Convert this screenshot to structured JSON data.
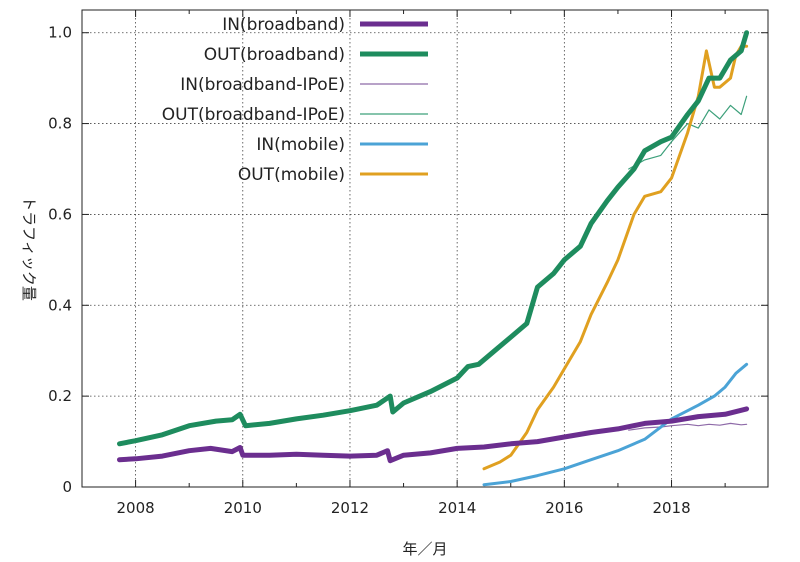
{
  "chart_data": {
    "type": "line",
    "xlabel": "年／月",
    "ylabel": "トラフィック量",
    "xlim": [
      2007.0,
      2019.8
    ],
    "ylim": [
      0,
      1.05
    ],
    "x_ticks": [
      2008,
      2010,
      2012,
      2014,
      2016,
      2018
    ],
    "x_tick_labels": [
      "2008",
      "2010",
      "2012",
      "2014",
      "2016",
      "2018"
    ],
    "y_ticks": [
      0,
      0.2,
      0.4,
      0.6,
      0.8,
      1.0
    ],
    "y_tick_labels": [
      "0",
      "0.2",
      "0.4",
      "0.6",
      "0.8",
      "1.0"
    ],
    "grid": true,
    "legend_position": "top-right",
    "series": [
      {
        "name": "IN(broadband)",
        "color": "#6b2e8f",
        "x": [
          2007.7,
          2008.0,
          2008.5,
          2009.0,
          2009.4,
          2009.8,
          2009.95,
          2010.0,
          2010.5,
          2011.0,
          2011.5,
          2012.0,
          2012.5,
          2012.7,
          2012.75,
          2013.0,
          2013.5,
          2014.0,
          2014.5,
          2015.0,
          2015.5,
          2016.0,
          2016.5,
          2017.0,
          2017.5,
          2018.0,
          2018.5,
          2019.0,
          2019.4
        ],
        "y": [
          0.06,
          0.062,
          0.068,
          0.08,
          0.085,
          0.078,
          0.087,
          0.07,
          0.07,
          0.072,
          0.07,
          0.068,
          0.07,
          0.08,
          0.058,
          0.07,
          0.075,
          0.085,
          0.088,
          0.095,
          0.1,
          0.11,
          0.12,
          0.128,
          0.14,
          0.145,
          0.155,
          0.16,
          0.172
        ]
      },
      {
        "name": "OUT(broadband)",
        "color": "#1e8c5e",
        "x": [
          2007.7,
          2008.0,
          2008.5,
          2009.0,
          2009.5,
          2009.8,
          2009.95,
          2010.05,
          2010.5,
          2011.0,
          2011.5,
          2012.0,
          2012.5,
          2012.75,
          2012.8,
          2013.0,
          2013.5,
          2014.0,
          2014.2,
          2014.4,
          2014.7,
          2015.0,
          2015.3,
          2015.5,
          2015.8,
          2016.0,
          2016.3,
          2016.5,
          2016.8,
          2017.0,
          2017.3,
          2017.5,
          2017.8,
          2018.0,
          2018.3,
          2018.5,
          2018.7,
          2018.9,
          2019.1,
          2019.3,
          2019.4
        ],
        "y": [
          0.095,
          0.102,
          0.115,
          0.135,
          0.145,
          0.148,
          0.16,
          0.135,
          0.14,
          0.15,
          0.158,
          0.168,
          0.18,
          0.2,
          0.165,
          0.185,
          0.21,
          0.24,
          0.265,
          0.27,
          0.3,
          0.33,
          0.36,
          0.44,
          0.47,
          0.5,
          0.53,
          0.58,
          0.63,
          0.66,
          0.7,
          0.74,
          0.76,
          0.77,
          0.82,
          0.85,
          0.9,
          0.9,
          0.94,
          0.96,
          1.0
        ]
      },
      {
        "name": "IN(broadband-IPoE)",
        "color": "#8e6aa8",
        "x": [
          2017.2,
          2017.5,
          2017.8,
          2018.0,
          2018.3,
          2018.5,
          2018.7,
          2018.9,
          2019.1,
          2019.3,
          2019.4
        ],
        "y": [
          0.125,
          0.13,
          0.132,
          0.135,
          0.138,
          0.135,
          0.138,
          0.136,
          0.14,
          0.137,
          0.138
        ]
      },
      {
        "name": "OUT(broadband-IPoE)",
        "color": "#3da07b",
        "x": [
          2017.2,
          2017.5,
          2017.8,
          2018.0,
          2018.3,
          2018.5,
          2018.7,
          2018.9,
          2019.1,
          2019.3,
          2019.4
        ],
        "y": [
          0.7,
          0.72,
          0.73,
          0.76,
          0.8,
          0.79,
          0.83,
          0.81,
          0.84,
          0.82,
          0.86
        ]
      },
      {
        "name": "IN(mobile)",
        "color": "#4ba3d6",
        "x": [
          2014.5,
          2015.0,
          2015.5,
          2016.0,
          2016.5,
          2017.0,
          2017.5,
          2018.0,
          2018.5,
          2018.8,
          2019.0,
          2019.2,
          2019.4
        ],
        "y": [
          0.005,
          0.012,
          0.025,
          0.04,
          0.06,
          0.08,
          0.105,
          0.15,
          0.18,
          0.2,
          0.22,
          0.25,
          0.27
        ]
      },
      {
        "name": "OUT(mobile)",
        "color": "#e0a020",
        "x": [
          2014.5,
          2014.8,
          2015.0,
          2015.3,
          2015.5,
          2015.8,
          2016.0,
          2016.3,
          2016.5,
          2016.8,
          2017.0,
          2017.3,
          2017.5,
          2017.8,
          2018.0,
          2018.3,
          2018.5,
          2018.65,
          2018.8,
          2018.9,
          2019.1,
          2019.2,
          2019.3,
          2019.4
        ],
        "y": [
          0.04,
          0.055,
          0.07,
          0.12,
          0.17,
          0.22,
          0.26,
          0.32,
          0.38,
          0.45,
          0.5,
          0.6,
          0.64,
          0.65,
          0.68,
          0.78,
          0.86,
          0.96,
          0.88,
          0.88,
          0.9,
          0.95,
          0.97,
          0.97
        ]
      }
    ]
  }
}
